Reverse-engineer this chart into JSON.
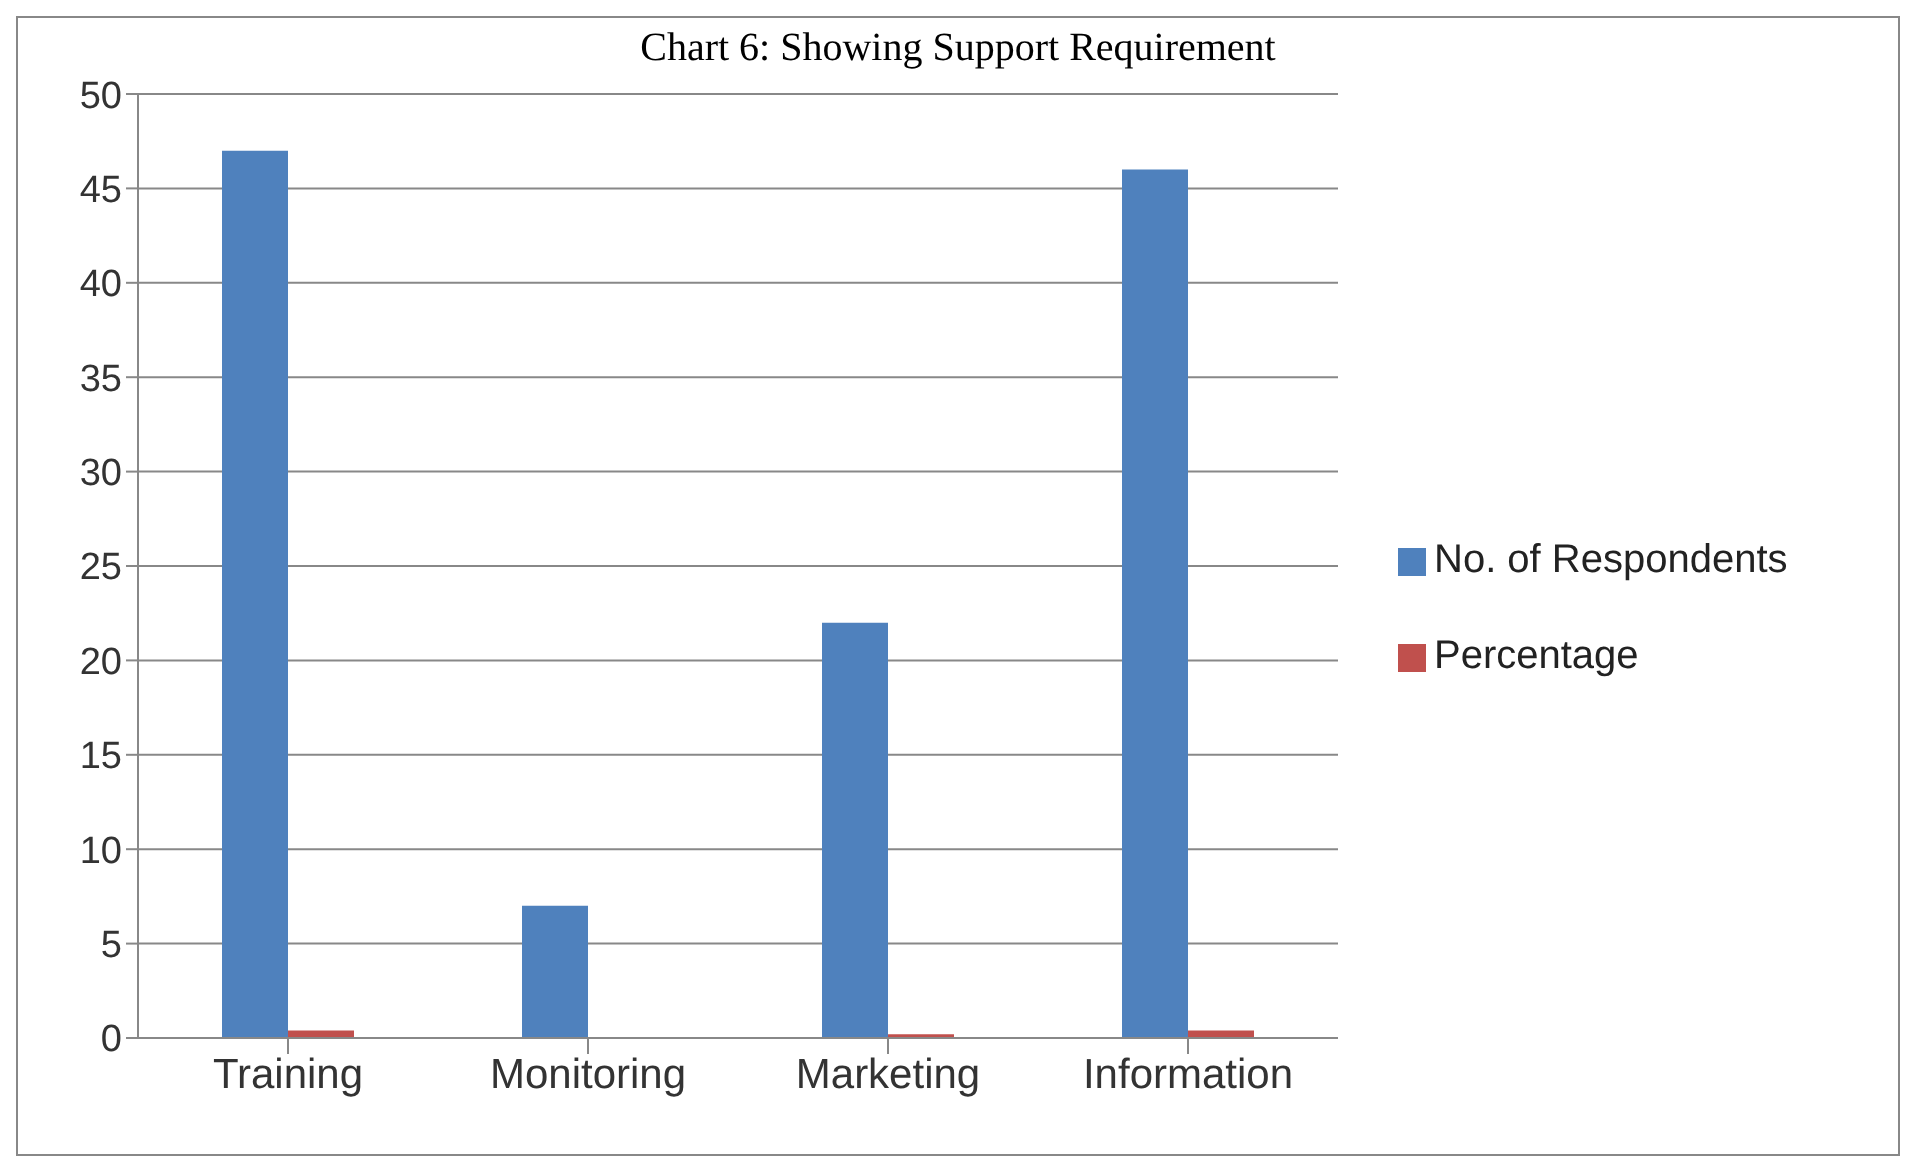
{
  "chart_data": {
    "type": "bar",
    "title": "Chart 6: Showing Support Requirement",
    "categories": [
      "Training",
      "Monitoring",
      "Marketing",
      "Information"
    ],
    "series": [
      {
        "name": "No. of Respondents",
        "color": "#4f81bd",
        "values": [
          47,
          7,
          22,
          46
        ]
      },
      {
        "name": "Percentage",
        "color": "#c0504d",
        "values": [
          0.4,
          null,
          0.2,
          0.4
        ]
      }
    ],
    "ylim": [
      0,
      50
    ],
    "yticks": [
      0,
      5,
      10,
      15,
      20,
      25,
      30,
      35,
      40,
      45,
      50
    ],
    "grid": "y",
    "legend": "right"
  }
}
